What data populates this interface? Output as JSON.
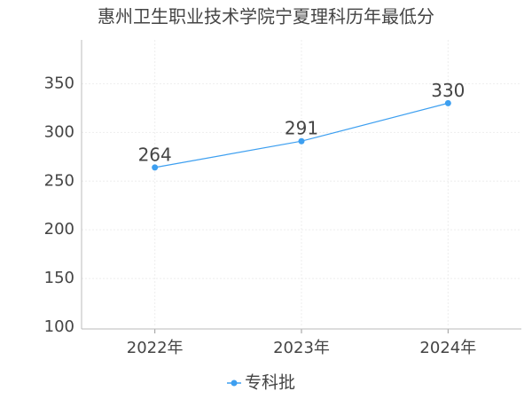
{
  "chart_data": {
    "type": "line",
    "title": "惠州卫生职业技术学院宁夏理科历年最低分",
    "categories": [
      "2022年",
      "2023年",
      "2024年"
    ],
    "series": [
      {
        "name": "专科批",
        "color": "#3d9ff0",
        "values": [
          264,
          291,
          330
        ]
      }
    ],
    "ylim": [
      100,
      395
    ],
    "yticks": [
      100,
      150,
      200,
      250,
      300,
      350
    ],
    "grid": true,
    "legend": "bottom"
  }
}
